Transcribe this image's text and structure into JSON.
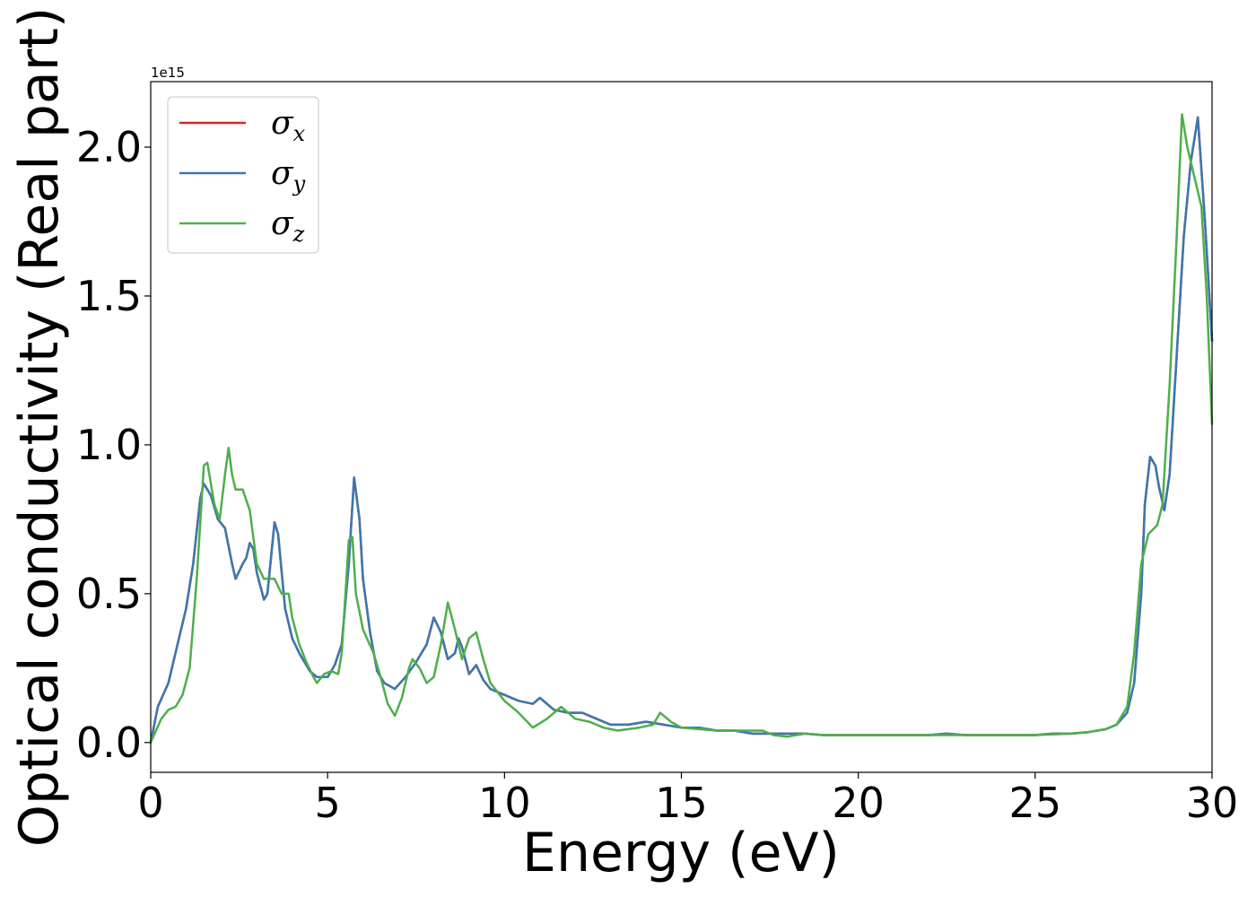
{
  "chart_data": {
    "type": "line",
    "xlabel": "Energy (eV)",
    "ylabel": "Optical conductivity (Real part)",
    "y_offset_text": "1e15",
    "xlim": [
      0,
      30
    ],
    "ylim": [
      -0.1,
      2.22
    ],
    "x_ticks": [
      0,
      5,
      10,
      15,
      20,
      25,
      30
    ],
    "x_tick_labels": [
      "0",
      "5",
      "10",
      "15",
      "20",
      "25",
      "30"
    ],
    "y_ticks": [
      0.0,
      0.5,
      1.0,
      1.5,
      2.0
    ],
    "y_tick_labels": [
      "0.0",
      "0.5",
      "1.0",
      "1.5",
      "2.0"
    ],
    "grid": false,
    "legend_position": "top-left",
    "series": [
      {
        "name": "σ",
        "subscript": "x",
        "color": "#d62728",
        "points": [
          [
            0,
            0
          ],
          [
            0.2,
            0.12
          ],
          [
            0.5,
            0.2
          ],
          [
            0.8,
            0.35
          ],
          [
            1.0,
            0.45
          ],
          [
            1.2,
            0.6
          ],
          [
            1.4,
            0.82
          ],
          [
            1.5,
            0.87
          ],
          [
            1.7,
            0.83
          ],
          [
            1.9,
            0.75
          ],
          [
            2.1,
            0.72
          ],
          [
            2.3,
            0.6
          ],
          [
            2.4,
            0.55
          ],
          [
            2.6,
            0.6
          ],
          [
            2.7,
            0.62
          ],
          [
            2.8,
            0.67
          ],
          [
            2.9,
            0.65
          ],
          [
            3.0,
            0.57
          ],
          [
            3.2,
            0.48
          ],
          [
            3.3,
            0.5
          ],
          [
            3.5,
            0.74
          ],
          [
            3.6,
            0.7
          ],
          [
            3.8,
            0.45
          ],
          [
            4.0,
            0.35
          ],
          [
            4.2,
            0.3
          ],
          [
            4.5,
            0.24
          ],
          [
            4.7,
            0.22
          ],
          [
            5.0,
            0.22
          ],
          [
            5.2,
            0.26
          ],
          [
            5.4,
            0.33
          ],
          [
            5.6,
            0.6
          ],
          [
            5.75,
            0.89
          ],
          [
            5.9,
            0.75
          ],
          [
            6.0,
            0.55
          ],
          [
            6.2,
            0.37
          ],
          [
            6.4,
            0.24
          ],
          [
            6.6,
            0.2
          ],
          [
            6.9,
            0.18
          ],
          [
            7.2,
            0.22
          ],
          [
            7.5,
            0.27
          ],
          [
            7.8,
            0.33
          ],
          [
            8.0,
            0.42
          ],
          [
            8.2,
            0.37
          ],
          [
            8.4,
            0.28
          ],
          [
            8.6,
            0.3
          ],
          [
            8.7,
            0.35
          ],
          [
            8.8,
            0.32
          ],
          [
            9.0,
            0.23
          ],
          [
            9.2,
            0.26
          ],
          [
            9.4,
            0.21
          ],
          [
            9.6,
            0.18
          ],
          [
            10.0,
            0.16
          ],
          [
            10.4,
            0.14
          ],
          [
            10.8,
            0.13
          ],
          [
            11.0,
            0.15
          ],
          [
            11.4,
            0.11
          ],
          [
            11.8,
            0.1
          ],
          [
            12.2,
            0.1
          ],
          [
            12.6,
            0.08
          ],
          [
            13.0,
            0.06
          ],
          [
            13.5,
            0.06
          ],
          [
            14.0,
            0.07
          ],
          [
            14.5,
            0.06
          ],
          [
            15.0,
            0.05
          ],
          [
            15.5,
            0.05
          ],
          [
            16.0,
            0.04
          ],
          [
            16.5,
            0.04
          ],
          [
            17.0,
            0.03
          ],
          [
            17.5,
            0.03
          ],
          [
            18.0,
            0.03
          ],
          [
            18.5,
            0.03
          ],
          [
            19.0,
            0.025
          ],
          [
            20.0,
            0.025
          ],
          [
            21.0,
            0.025
          ],
          [
            22.0,
            0.025
          ],
          [
            22.5,
            0.03
          ],
          [
            23.0,
            0.025
          ],
          [
            24.0,
            0.025
          ],
          [
            25.0,
            0.025
          ],
          [
            25.5,
            0.03
          ],
          [
            26.0,
            0.03
          ],
          [
            26.5,
            0.035
          ],
          [
            27.0,
            0.045
          ],
          [
            27.3,
            0.06
          ],
          [
            27.6,
            0.1
          ],
          [
            27.8,
            0.2
          ],
          [
            28.0,
            0.5
          ],
          [
            28.1,
            0.8
          ],
          [
            28.25,
            0.96
          ],
          [
            28.4,
            0.93
          ],
          [
            28.5,
            0.86
          ],
          [
            28.65,
            0.78
          ],
          [
            28.8,
            0.9
          ],
          [
            29.0,
            1.3
          ],
          [
            29.2,
            1.7
          ],
          [
            29.4,
            1.95
          ],
          [
            29.6,
            2.1
          ],
          [
            29.8,
            1.75
          ],
          [
            30.0,
            1.35
          ]
        ]
      },
      {
        "name": "σ",
        "subscript": "y",
        "color": "#3a78b1",
        "points": [
          [
            0,
            0
          ],
          [
            0.2,
            0.12
          ],
          [
            0.5,
            0.2
          ],
          [
            0.8,
            0.35
          ],
          [
            1.0,
            0.45
          ],
          [
            1.2,
            0.6
          ],
          [
            1.4,
            0.82
          ],
          [
            1.5,
            0.87
          ],
          [
            1.7,
            0.83
          ],
          [
            1.9,
            0.75
          ],
          [
            2.1,
            0.72
          ],
          [
            2.3,
            0.6
          ],
          [
            2.4,
            0.55
          ],
          [
            2.6,
            0.6
          ],
          [
            2.7,
            0.62
          ],
          [
            2.8,
            0.67
          ],
          [
            2.9,
            0.65
          ],
          [
            3.0,
            0.57
          ],
          [
            3.2,
            0.48
          ],
          [
            3.3,
            0.5
          ],
          [
            3.5,
            0.74
          ],
          [
            3.6,
            0.7
          ],
          [
            3.8,
            0.45
          ],
          [
            4.0,
            0.35
          ],
          [
            4.2,
            0.3
          ],
          [
            4.5,
            0.24
          ],
          [
            4.7,
            0.22
          ],
          [
            5.0,
            0.22
          ],
          [
            5.2,
            0.26
          ],
          [
            5.4,
            0.33
          ],
          [
            5.6,
            0.6
          ],
          [
            5.75,
            0.89
          ],
          [
            5.9,
            0.75
          ],
          [
            6.0,
            0.55
          ],
          [
            6.2,
            0.37
          ],
          [
            6.4,
            0.24
          ],
          [
            6.6,
            0.2
          ],
          [
            6.9,
            0.18
          ],
          [
            7.2,
            0.22
          ],
          [
            7.5,
            0.27
          ],
          [
            7.8,
            0.33
          ],
          [
            8.0,
            0.42
          ],
          [
            8.2,
            0.37
          ],
          [
            8.4,
            0.28
          ],
          [
            8.6,
            0.3
          ],
          [
            8.7,
            0.35
          ],
          [
            8.8,
            0.32
          ],
          [
            9.0,
            0.23
          ],
          [
            9.2,
            0.26
          ],
          [
            9.4,
            0.21
          ],
          [
            9.6,
            0.18
          ],
          [
            10.0,
            0.16
          ],
          [
            10.4,
            0.14
          ],
          [
            10.8,
            0.13
          ],
          [
            11.0,
            0.15
          ],
          [
            11.4,
            0.11
          ],
          [
            11.8,
            0.1
          ],
          [
            12.2,
            0.1
          ],
          [
            12.6,
            0.08
          ],
          [
            13.0,
            0.06
          ],
          [
            13.5,
            0.06
          ],
          [
            14.0,
            0.07
          ],
          [
            14.5,
            0.06
          ],
          [
            15.0,
            0.05
          ],
          [
            15.5,
            0.05
          ],
          [
            16.0,
            0.04
          ],
          [
            16.5,
            0.04
          ],
          [
            17.0,
            0.03
          ],
          [
            17.5,
            0.03
          ],
          [
            18.0,
            0.03
          ],
          [
            18.5,
            0.03
          ],
          [
            19.0,
            0.025
          ],
          [
            20.0,
            0.025
          ],
          [
            21.0,
            0.025
          ],
          [
            22.0,
            0.025
          ],
          [
            22.5,
            0.03
          ],
          [
            23.0,
            0.025
          ],
          [
            24.0,
            0.025
          ],
          [
            25.0,
            0.025
          ],
          [
            25.5,
            0.03
          ],
          [
            26.0,
            0.03
          ],
          [
            26.5,
            0.035
          ],
          [
            27.0,
            0.045
          ],
          [
            27.3,
            0.06
          ],
          [
            27.6,
            0.1
          ],
          [
            27.8,
            0.2
          ],
          [
            28.0,
            0.5
          ],
          [
            28.1,
            0.8
          ],
          [
            28.25,
            0.96
          ],
          [
            28.4,
            0.93
          ],
          [
            28.5,
            0.86
          ],
          [
            28.65,
            0.78
          ],
          [
            28.8,
            0.9
          ],
          [
            29.0,
            1.3
          ],
          [
            29.2,
            1.7
          ],
          [
            29.4,
            1.95
          ],
          [
            29.6,
            2.1
          ],
          [
            29.8,
            1.75
          ],
          [
            30.0,
            1.35
          ]
        ]
      },
      {
        "name": "σ",
        "subscript": "z",
        "color": "#4daf4a",
        "points": [
          [
            0,
            0
          ],
          [
            0.3,
            0.08
          ],
          [
            0.5,
            0.11
          ],
          [
            0.7,
            0.12
          ],
          [
            0.9,
            0.16
          ],
          [
            1.1,
            0.25
          ],
          [
            1.3,
            0.55
          ],
          [
            1.5,
            0.93
          ],
          [
            1.6,
            0.94
          ],
          [
            1.8,
            0.8
          ],
          [
            1.95,
            0.75
          ],
          [
            2.1,
            0.9
          ],
          [
            2.2,
            0.99
          ],
          [
            2.3,
            0.9
          ],
          [
            2.4,
            0.85
          ],
          [
            2.6,
            0.85
          ],
          [
            2.8,
            0.78
          ],
          [
            3.0,
            0.6
          ],
          [
            3.2,
            0.55
          ],
          [
            3.5,
            0.55
          ],
          [
            3.7,
            0.5
          ],
          [
            3.9,
            0.5
          ],
          [
            4.0,
            0.42
          ],
          [
            4.2,
            0.33
          ],
          [
            4.4,
            0.27
          ],
          [
            4.6,
            0.22
          ],
          [
            4.7,
            0.2
          ],
          [
            4.9,
            0.23
          ],
          [
            5.1,
            0.24
          ],
          [
            5.3,
            0.23
          ],
          [
            5.4,
            0.3
          ],
          [
            5.6,
            0.68
          ],
          [
            5.7,
            0.69
          ],
          [
            5.8,
            0.5
          ],
          [
            6.0,
            0.38
          ],
          [
            6.3,
            0.3
          ],
          [
            6.5,
            0.22
          ],
          [
            6.7,
            0.13
          ],
          [
            6.9,
            0.09
          ],
          [
            7.1,
            0.15
          ],
          [
            7.3,
            0.25
          ],
          [
            7.4,
            0.28
          ],
          [
            7.6,
            0.25
          ],
          [
            7.8,
            0.2
          ],
          [
            8.0,
            0.22
          ],
          [
            8.2,
            0.33
          ],
          [
            8.4,
            0.47
          ],
          [
            8.6,
            0.38
          ],
          [
            8.8,
            0.28
          ],
          [
            9.0,
            0.35
          ],
          [
            9.2,
            0.37
          ],
          [
            9.4,
            0.28
          ],
          [
            9.6,
            0.2
          ],
          [
            10.0,
            0.14
          ],
          [
            10.4,
            0.1
          ],
          [
            10.8,
            0.05
          ],
          [
            11.2,
            0.08
          ],
          [
            11.6,
            0.12
          ],
          [
            12.0,
            0.08
          ],
          [
            12.4,
            0.07
          ],
          [
            12.8,
            0.05
          ],
          [
            13.2,
            0.04
          ],
          [
            13.8,
            0.05
          ],
          [
            14.2,
            0.06
          ],
          [
            14.4,
            0.1
          ],
          [
            14.7,
            0.07
          ],
          [
            15.0,
            0.05
          ],
          [
            15.5,
            0.045
          ],
          [
            16.0,
            0.04
          ],
          [
            16.5,
            0.04
          ],
          [
            17.0,
            0.04
          ],
          [
            17.3,
            0.04
          ],
          [
            17.6,
            0.025
          ],
          [
            18.0,
            0.02
          ],
          [
            18.5,
            0.03
          ],
          [
            19.0,
            0.025
          ],
          [
            20.0,
            0.025
          ],
          [
            21.0,
            0.025
          ],
          [
            22.0,
            0.025
          ],
          [
            23.0,
            0.025
          ],
          [
            24.0,
            0.025
          ],
          [
            25.0,
            0.025
          ],
          [
            26.0,
            0.03
          ],
          [
            26.5,
            0.035
          ],
          [
            27.0,
            0.045
          ],
          [
            27.3,
            0.06
          ],
          [
            27.6,
            0.12
          ],
          [
            27.8,
            0.3
          ],
          [
            28.0,
            0.6
          ],
          [
            28.2,
            0.7
          ],
          [
            28.45,
            0.73
          ],
          [
            28.6,
            0.8
          ],
          [
            28.8,
            1.2
          ],
          [
            29.0,
            1.7
          ],
          [
            29.15,
            2.11
          ],
          [
            29.3,
            2.0
          ],
          [
            29.5,
            1.9
          ],
          [
            29.7,
            1.8
          ],
          [
            29.85,
            1.5
          ],
          [
            30.0,
            1.07
          ]
        ]
      }
    ]
  }
}
